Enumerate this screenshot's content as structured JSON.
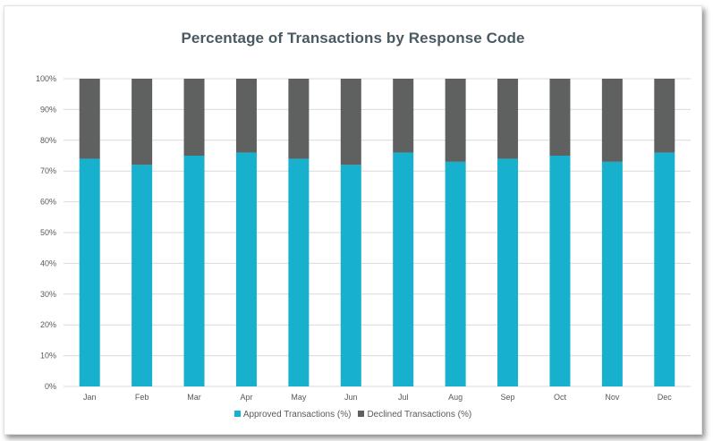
{
  "chart_data": {
    "type": "bar",
    "stacked": true,
    "title": "Percentage of Transactions by Response Code",
    "xlabel": "",
    "ylabel": "",
    "ylim": [
      0,
      100
    ],
    "ytick_labels": [
      "0%",
      "10%",
      "20%",
      "30%",
      "40%",
      "50%",
      "60%",
      "70%",
      "80%",
      "90%",
      "100%"
    ],
    "categories": [
      "Jan",
      "Feb",
      "Mar",
      "Apr",
      "May",
      "Jun",
      "Jul",
      "Aug",
      "Sep",
      "Oct",
      "Nov",
      "Dec"
    ],
    "series": [
      {
        "name": "Approved Transactions (%)",
        "color": "#17b0cd",
        "values": [
          74,
          72,
          75,
          76,
          74,
          72,
          76,
          73,
          74,
          75,
          73,
          76
        ]
      },
      {
        "name": "Declined Transactions (%)",
        "color": "#5f6161",
        "values": [
          26,
          28,
          25,
          24,
          26,
          28,
          24,
          27,
          26,
          25,
          27,
          24
        ]
      }
    ],
    "grid": true,
    "legend_position": "bottom"
  }
}
